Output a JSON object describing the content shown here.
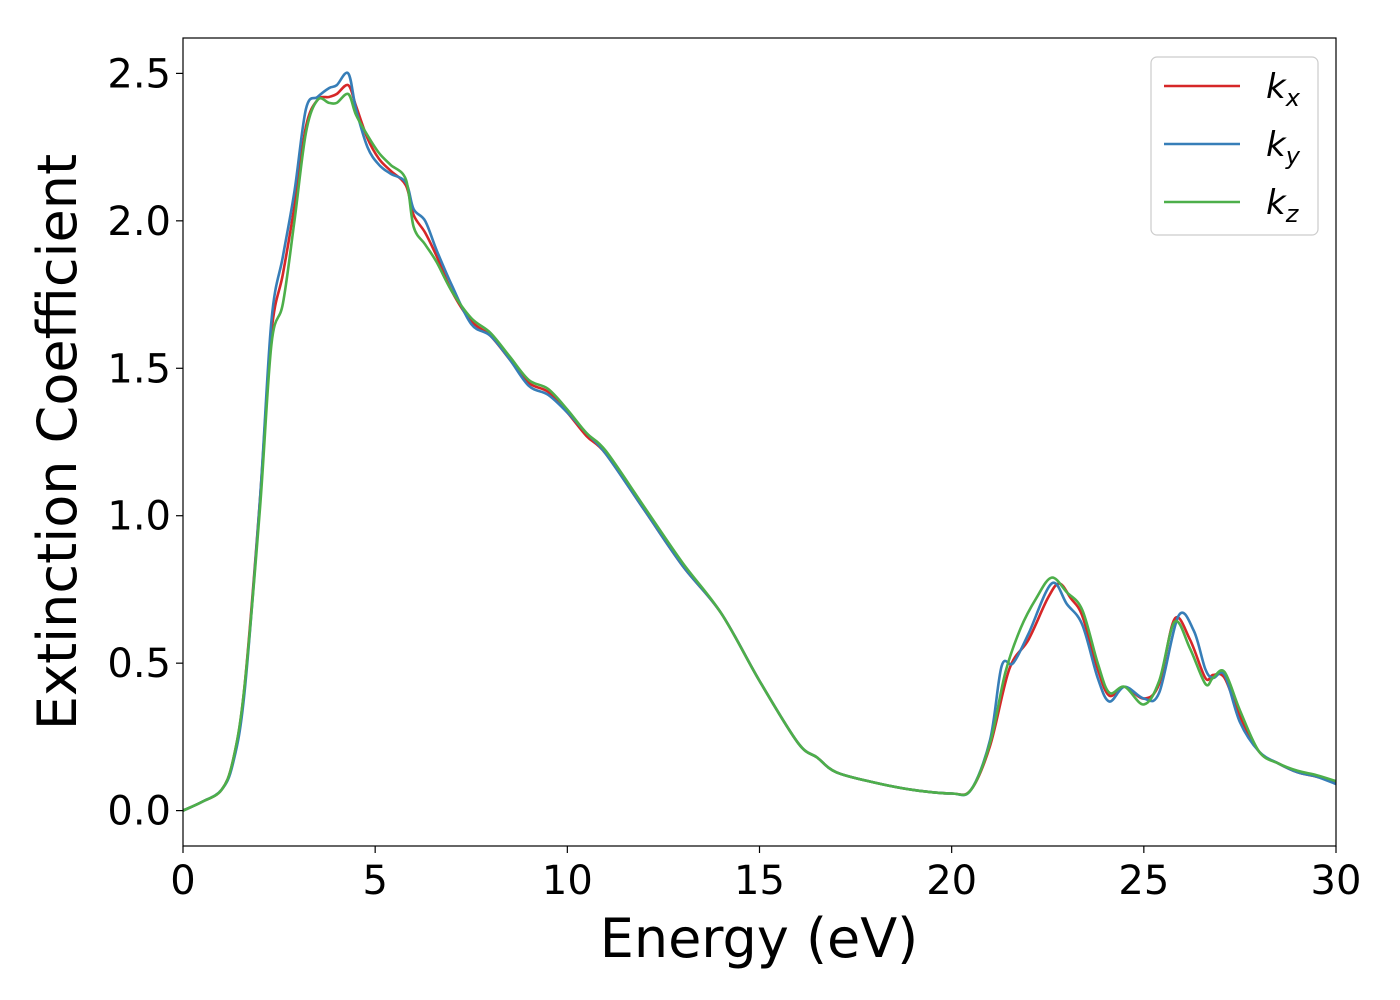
{
  "chart_data": {
    "type": "line",
    "title": "",
    "xlabel": "Energy (eV)",
    "ylabel": "Extinction Coefficient",
    "xlim": [
      0,
      30
    ],
    "ylim": [
      -0.12,
      2.62
    ],
    "xticks": [
      0,
      5,
      10,
      15,
      20,
      25,
      30
    ],
    "yticks": [
      0.0,
      0.5,
      1.0,
      1.5,
      2.0,
      2.5
    ],
    "xtick_labels": [
      "0",
      "5",
      "10",
      "15",
      "20",
      "25",
      "30"
    ],
    "ytick_labels": [
      "0.0",
      "0.5",
      "1.0",
      "1.5",
      "2.0",
      "2.5"
    ],
    "grid": false,
    "legend": {
      "position": "top-right"
    },
    "series": [
      {
        "name": "k",
        "sub": "x",
        "color": "#d62728",
        "x": [
          0,
          0.5,
          1.0,
          1.3,
          1.6,
          2.0,
          2.3,
          2.6,
          2.9,
          3.2,
          3.5,
          3.8,
          4.0,
          4.3,
          4.5,
          4.8,
          5.1,
          5.4,
          5.8,
          6.0,
          6.3,
          6.6,
          7.0,
          7.5,
          8.0,
          8.5,
          9.0,
          9.5,
          10.0,
          10.5,
          11.0,
          12.0,
          13.0,
          14.0,
          15.0,
          16.0,
          16.5,
          17.0,
          18.0,
          19.0,
          20.0,
          20.5,
          21.0,
          21.5,
          22.0,
          22.5,
          22.8,
          23.1,
          23.4,
          23.8,
          24.1,
          24.5,
          25.0,
          25.4,
          25.8,
          26.2,
          26.6,
          26.8,
          27.1,
          27.5,
          28.0,
          28.5,
          29.0,
          29.5,
          30.0
        ],
        "y": [
          0,
          0.03,
          0.07,
          0.17,
          0.42,
          1.05,
          1.62,
          1.82,
          2.05,
          2.32,
          2.41,
          2.42,
          2.43,
          2.46,
          2.39,
          2.28,
          2.21,
          2.17,
          2.12,
          2.02,
          1.96,
          1.88,
          1.76,
          1.66,
          1.61,
          1.53,
          1.45,
          1.42,
          1.35,
          1.27,
          1.21,
          1.02,
          0.83,
          0.67,
          0.44,
          0.23,
          0.18,
          0.13,
          0.095,
          0.07,
          0.058,
          0.07,
          0.22,
          0.48,
          0.58,
          0.72,
          0.77,
          0.72,
          0.66,
          0.48,
          0.39,
          0.42,
          0.38,
          0.43,
          0.65,
          0.58,
          0.45,
          0.46,
          0.45,
          0.32,
          0.2,
          0.16,
          0.13,
          0.115,
          0.095
        ]
      },
      {
        "name": "k",
        "sub": "y",
        "color": "#377eb8",
        "x": [
          0,
          0.5,
          1.0,
          1.3,
          1.6,
          2.0,
          2.3,
          2.6,
          2.9,
          3.2,
          3.5,
          3.8,
          4.0,
          4.3,
          4.5,
          4.8,
          5.1,
          5.4,
          5.8,
          6.0,
          6.3,
          6.6,
          7.0,
          7.5,
          8.0,
          8.5,
          9.0,
          9.5,
          10.0,
          10.5,
          11.0,
          12.0,
          13.0,
          14.0,
          15.0,
          16.0,
          16.5,
          17.0,
          18.0,
          19.0,
          20.0,
          20.5,
          21.0,
          21.3,
          21.6,
          22.0,
          22.6,
          23.0,
          23.4,
          23.8,
          24.1,
          24.5,
          25.0,
          25.4,
          25.9,
          26.3,
          26.6,
          26.8,
          27.1,
          27.5,
          28.0,
          28.5,
          29.0,
          29.5,
          30.0
        ],
        "y": [
          0,
          0.03,
          0.07,
          0.16,
          0.4,
          1.05,
          1.66,
          1.88,
          2.1,
          2.38,
          2.42,
          2.45,
          2.46,
          2.5,
          2.38,
          2.25,
          2.19,
          2.16,
          2.13,
          2.04,
          2.0,
          1.9,
          1.78,
          1.65,
          1.61,
          1.53,
          1.44,
          1.41,
          1.35,
          1.28,
          1.21,
          1.02,
          0.83,
          0.67,
          0.44,
          0.23,
          0.18,
          0.13,
          0.095,
          0.07,
          0.058,
          0.07,
          0.24,
          0.49,
          0.5,
          0.6,
          0.77,
          0.7,
          0.63,
          0.45,
          0.37,
          0.42,
          0.38,
          0.4,
          0.66,
          0.61,
          0.48,
          0.45,
          0.46,
          0.3,
          0.2,
          0.16,
          0.13,
          0.115,
          0.09
        ]
      },
      {
        "name": "k",
        "sub": "z",
        "color": "#4daf4a",
        "x": [
          0,
          0.5,
          1.0,
          1.3,
          1.6,
          2.0,
          2.3,
          2.6,
          2.9,
          3.2,
          3.5,
          3.8,
          4.0,
          4.3,
          4.5,
          4.8,
          5.1,
          5.4,
          5.8,
          6.0,
          6.3,
          6.6,
          7.0,
          7.5,
          8.0,
          8.5,
          9.0,
          9.5,
          10.0,
          10.5,
          11.0,
          12.0,
          13.0,
          14.0,
          15.0,
          16.0,
          16.5,
          17.0,
          18.0,
          19.0,
          20.0,
          20.5,
          21.0,
          21.4,
          21.8,
          22.2,
          22.6,
          23.0,
          23.4,
          23.8,
          24.1,
          24.5,
          25.0,
          25.4,
          25.8,
          26.2,
          26.6,
          26.8,
          27.1,
          27.5,
          28.0,
          28.5,
          29.0,
          29.5,
          30.0
        ],
        "y": [
          0,
          0.03,
          0.07,
          0.17,
          0.42,
          1.02,
          1.58,
          1.72,
          2.0,
          2.3,
          2.41,
          2.4,
          2.4,
          2.43,
          2.36,
          2.29,
          2.23,
          2.19,
          2.14,
          1.98,
          1.92,
          1.86,
          1.76,
          1.67,
          1.62,
          1.54,
          1.46,
          1.43,
          1.36,
          1.28,
          1.22,
          1.03,
          0.84,
          0.67,
          0.44,
          0.23,
          0.18,
          0.13,
          0.095,
          0.07,
          0.058,
          0.07,
          0.23,
          0.47,
          0.62,
          0.72,
          0.79,
          0.74,
          0.68,
          0.5,
          0.4,
          0.42,
          0.36,
          0.44,
          0.64,
          0.55,
          0.43,
          0.45,
          0.47,
          0.34,
          0.2,
          0.16,
          0.135,
          0.12,
          0.1
        ]
      }
    ]
  }
}
